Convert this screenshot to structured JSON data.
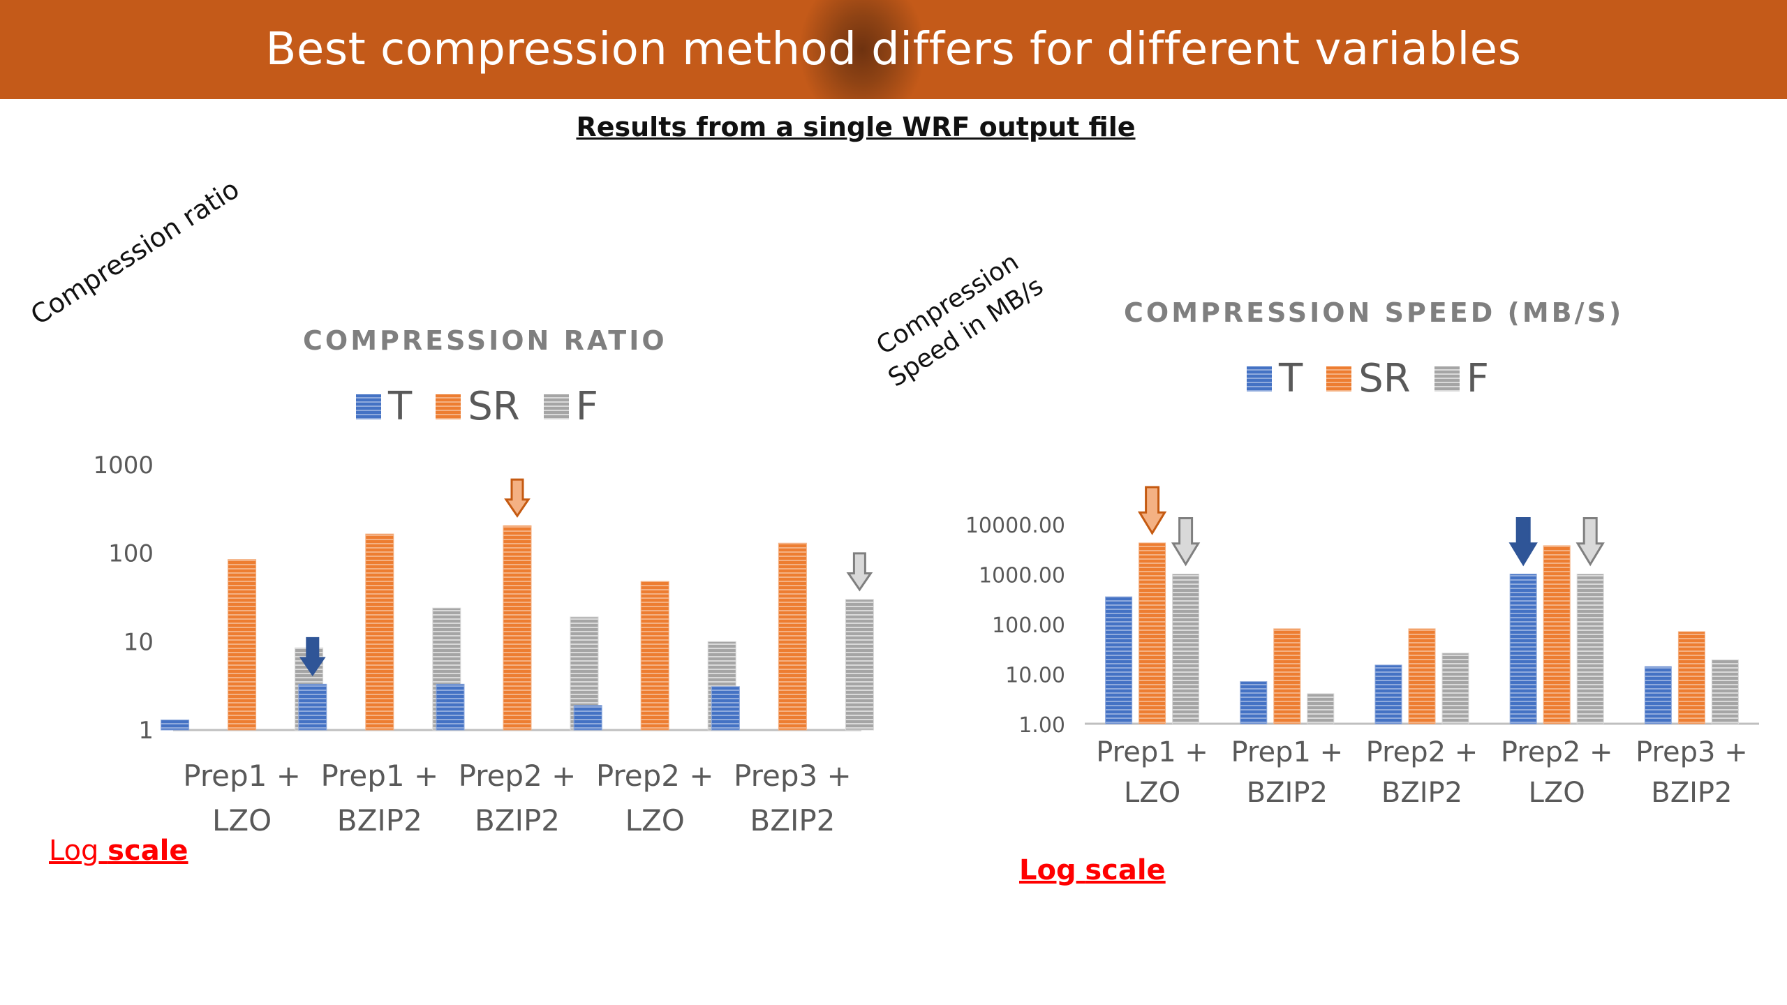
{
  "header": {
    "title": "Best compression method differs for different variables"
  },
  "subtitle": "Results from a single WRF output file",
  "left_axis_note": "Compression ratio",
  "right_axis_note": [
    "Compression",
    "Speed in MB/s"
  ],
  "log_scale_note": {
    "word1": "Log",
    "word2": "scale"
  },
  "colors": {
    "T": "#4472c4",
    "SR": "#ed7d31",
    "F": "#a5a5a5",
    "banner": "#c45a19",
    "note": "#ff0000"
  },
  "legend": [
    "T",
    "SR",
    "F"
  ],
  "chart_data": [
    {
      "type": "bar",
      "title": "COMPRESSION RATIO",
      "scale": "log",
      "categories": [
        [
          "Prep1 +",
          "LZO"
        ],
        [
          "Prep1 +",
          "BZIP2"
        ],
        [
          "Prep2 +",
          "BZIP2"
        ],
        [
          "Prep2 +",
          "LZO"
        ],
        [
          "Prep3 +",
          "BZIP2"
        ]
      ],
      "series": [
        {
          "name": "T",
          "values": [
            1.3,
            3.3,
            3.3,
            1.9,
            3.1
          ]
        },
        {
          "name": "SR",
          "values": [
            85,
            165,
            205,
            48,
            130
          ]
        },
        {
          "name": "F",
          "values": [
            8.5,
            24,
            19,
            10,
            30
          ]
        }
      ],
      "ylim": [
        1,
        1000
      ],
      "yticks": [
        "1",
        "10",
        "100",
        "1000"
      ],
      "annotation_arrows": [
        {
          "category": 1,
          "series": "T",
          "style": "filled"
        },
        {
          "category": 2,
          "series": "SR",
          "style": "outline"
        },
        {
          "category": 4,
          "series": "F",
          "style": "outline"
        }
      ]
    },
    {
      "type": "bar",
      "title": "COMPRESSION SPEED (MB/S)",
      "scale": "log",
      "categories": [
        [
          "Prep1 +",
          "LZO"
        ],
        [
          "Prep1 +",
          "BZIP2"
        ],
        [
          "Prep2 +",
          "BZIP2"
        ],
        [
          "Prep2 +",
          "LZO"
        ],
        [
          "Prep3 +",
          "BZIP2"
        ]
      ],
      "series": [
        {
          "name": "T",
          "values": [
            350,
            7,
            15,
            1000,
            14
          ]
        },
        {
          "name": "SR",
          "values": [
            4200,
            80,
            80,
            3700,
            70
          ]
        },
        {
          "name": "F",
          "values": [
            1000,
            4,
            26,
            1000,
            19
          ]
        }
      ],
      "ylim": [
        1,
        10000
      ],
      "yticks": [
        "1.00",
        "10.00",
        "100.00",
        "1000.00",
        "10000.00"
      ],
      "annotation_arrows": [
        {
          "category": 0,
          "series": "SR",
          "style": "outline"
        },
        {
          "category": 0,
          "series": "F",
          "style": "outline"
        },
        {
          "category": 3,
          "series": "T",
          "style": "filled"
        },
        {
          "category": 3,
          "series": "F",
          "style": "outline"
        }
      ]
    }
  ]
}
